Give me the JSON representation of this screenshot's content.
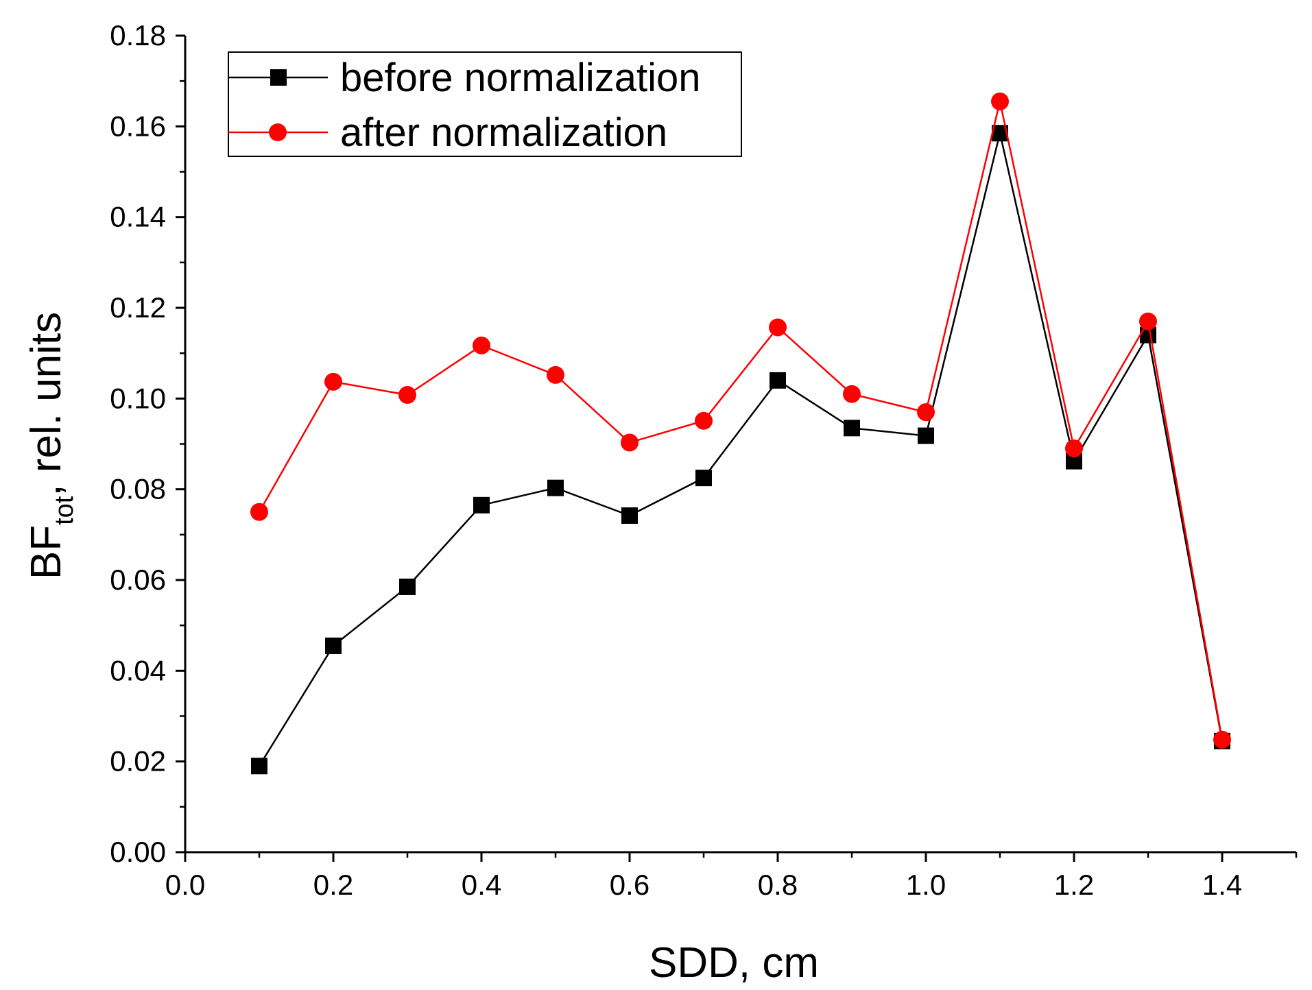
{
  "chart_data": {
    "type": "line",
    "xlabel": "SDD, cm",
    "ylabel": {
      "base": "BF",
      "subscript": "tot",
      "rest": ", rel. units"
    },
    "xlim": [
      0.0,
      1.5
    ],
    "ylim": [
      0.0,
      0.18
    ],
    "xticks": [
      "0.0",
      "0.2",
      "0.4",
      "0.6",
      "0.8",
      "1.0",
      "1.2",
      "1.4"
    ],
    "xtick_values": [
      0.0,
      0.2,
      0.4,
      0.6,
      0.8,
      1.0,
      1.2,
      1.4
    ],
    "yticks": [
      "0.00",
      "0.02",
      "0.04",
      "0.06",
      "0.08",
      "0.10",
      "0.12",
      "0.14",
      "0.16",
      "0.18"
    ],
    "ytick_values": [
      0.0,
      0.02,
      0.04,
      0.06,
      0.08,
      0.1,
      0.12,
      0.14,
      0.16,
      0.18
    ],
    "grid": false,
    "legend_position": "top-left",
    "x": [
      0.1,
      0.2,
      0.3,
      0.4,
      0.5,
      0.6,
      0.7,
      0.8,
      0.9,
      1.0,
      1.1,
      1.2,
      1.3,
      1.4
    ],
    "series": [
      {
        "name": "before normalization",
        "color": "#000000",
        "marker": "square",
        "values": [
          0.019,
          0.0455,
          0.0585,
          0.0765,
          0.0803,
          0.0742,
          0.0825,
          0.104,
          0.0935,
          0.0918,
          0.1585,
          0.0862,
          0.114,
          0.0245
        ]
      },
      {
        "name": "after normalization",
        "color": "#ff0000",
        "marker": "circle",
        "values": [
          0.075,
          0.1037,
          0.1008,
          0.1117,
          0.1052,
          0.0903,
          0.0951,
          0.1157,
          0.101,
          0.097,
          0.1655,
          0.089,
          0.117,
          0.0248
        ]
      }
    ]
  }
}
